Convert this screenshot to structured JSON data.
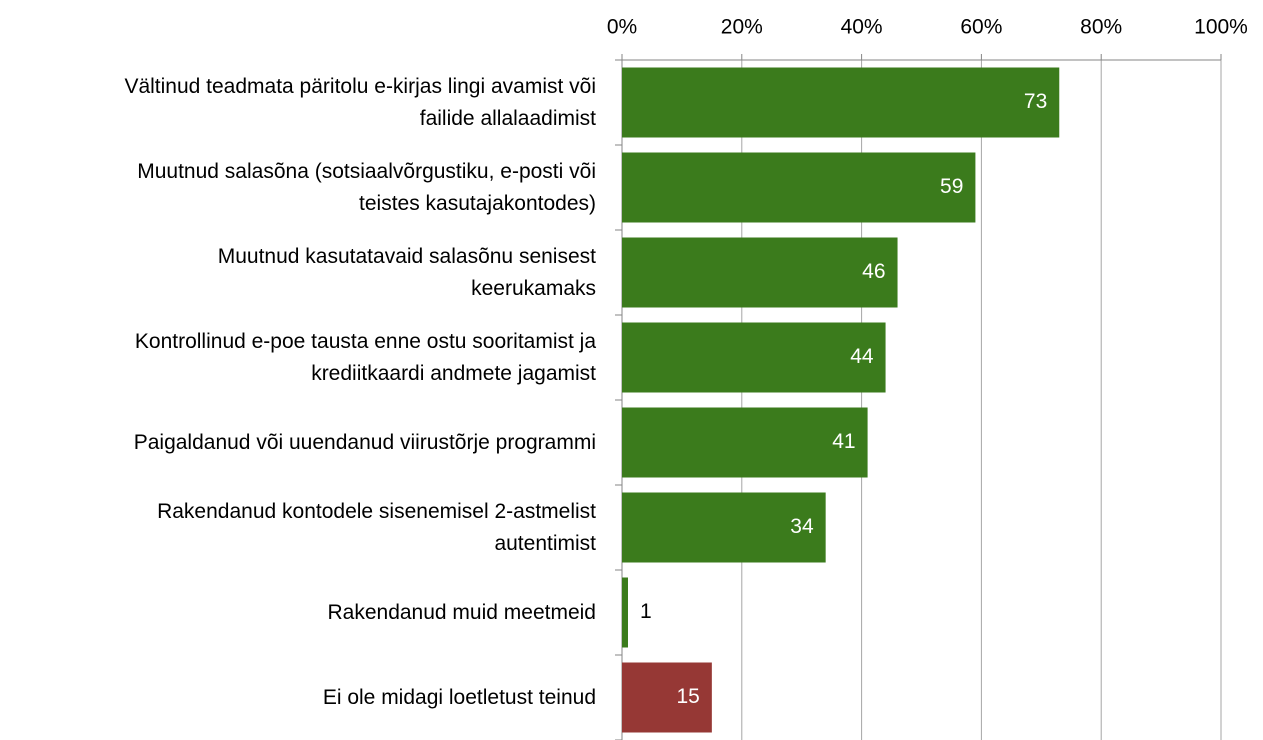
{
  "chart_data": {
    "type": "bar",
    "orientation": "horizontal",
    "categories": [
      "Vältinud teadmata päritolu e-kirjas lingi avamist või\nfailide allalaadimist",
      "Muutnud salasõna (sotsiaalvõrgustiku, e-posti või\nteistes kasutajakontodes)",
      "Muutnud kasutatavaid salasõnu senisest\nkeerukamaks",
      "Kontrollinud e-poe tausta enne ostu sooritamist ja\nkrediitkaardi andmete jagamist",
      "Paigaldanud või uuendanud viirustõrje programmi",
      "Rakendanud kontodele sisenemisel 2-astmelist\nautentimist",
      "Rakendanud muid meetmeid",
      "Ei ole midagi loetletust teinud"
    ],
    "values": [
      73,
      59,
      46,
      44,
      41,
      34,
      1,
      15
    ],
    "colors": [
      "#3b7b1c",
      "#3b7b1c",
      "#3b7b1c",
      "#3b7b1c",
      "#3b7b1c",
      "#3b7b1c",
      "#3b7b1c",
      "#963835"
    ],
    "xlim": [
      0,
      100
    ],
    "xticks": [
      {
        "value": 0,
        "label": "0%"
      },
      {
        "value": 20,
        "label": "20%"
      },
      {
        "value": 40,
        "label": "40%"
      },
      {
        "value": 60,
        "label": "60%"
      },
      {
        "value": 80,
        "label": "80%"
      },
      {
        "value": 100,
        "label": "100%"
      }
    ],
    "grid": true
  }
}
